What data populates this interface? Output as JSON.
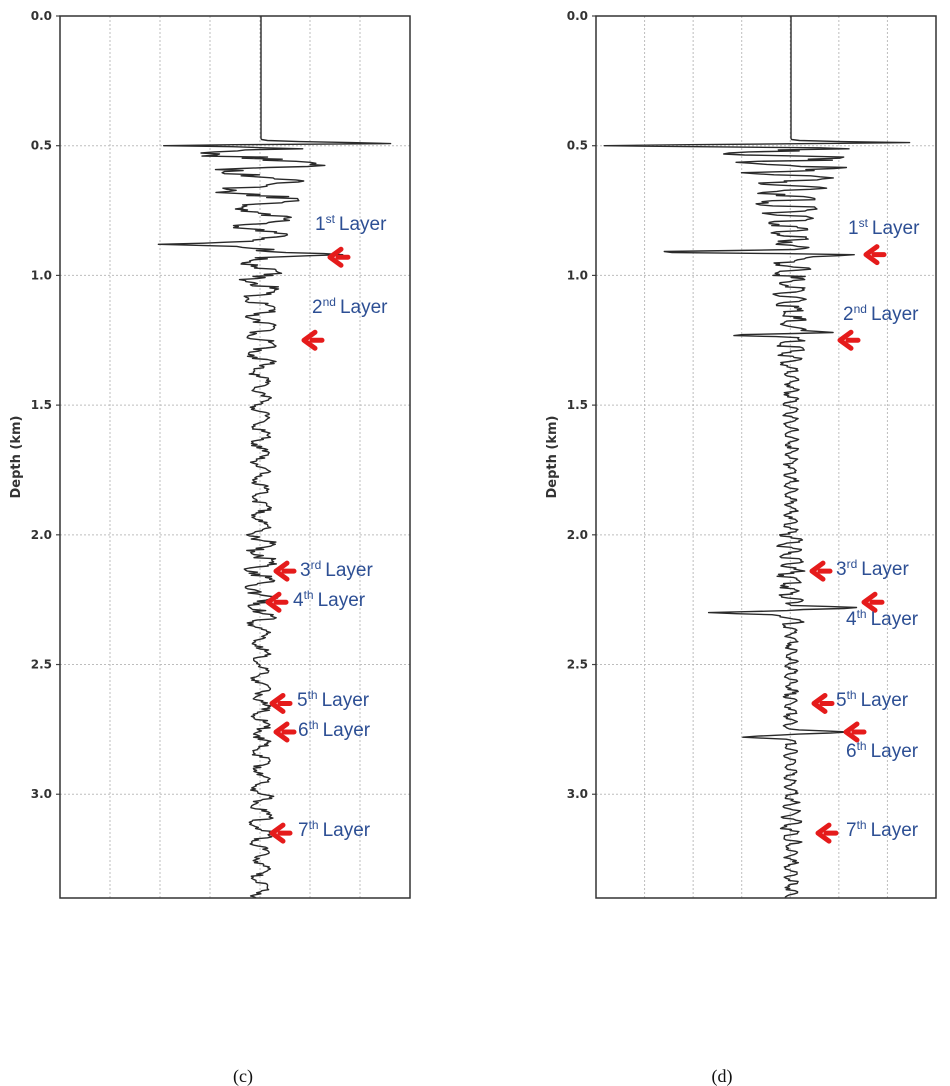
{
  "colors": {
    "trace": "#2a2a2a",
    "arrow": "#e51b1b",
    "label": "#2d4f94",
    "grid": "#bdbdbd"
  },
  "chart_data": [
    {
      "type": "line",
      "caption": "(c)",
      "ylabel": "Depth (km)",
      "ylim": [
        0.0,
        3.4
      ],
      "y_inverted": true,
      "yticks": [
        "0.0",
        "0.5",
        "1.0",
        "1.5",
        "2.0",
        "2.5",
        "3.0"
      ],
      "grid": true,
      "reflector_spikes": [
        {
          "depth": 0.5,
          "amp": -1.0
        },
        {
          "depth": 0.49,
          "amp": 0.6
        },
        {
          "depth": 0.88,
          "amp": -0.45
        },
        {
          "depth": 0.92,
          "amp": 0.38
        }
      ],
      "layers": [
        {
          "num": "1",
          "sup": "st",
          "word": "Layer",
          "arrow_depth": 0.93
        },
        {
          "num": "2",
          "sup": "nd",
          "word": "Layer",
          "arrow_depth": 1.25
        },
        {
          "num": "3",
          "sup": "rd",
          "word": "Layer",
          "arrow_depth": 2.14
        },
        {
          "num": "4",
          "sup": "th",
          "word": "Layer",
          "arrow_depth": 2.26
        },
        {
          "num": "5",
          "sup": "th",
          "word": "Layer",
          "arrow_depth": 2.65
        },
        {
          "num": "6",
          "sup": "th",
          "word": "Layer",
          "arrow_depth": 2.76
        },
        {
          "num": "7",
          "sup": "th",
          "word": "Layer",
          "arrow_depth": 3.15
        }
      ]
    },
    {
      "type": "line",
      "caption": "(d)",
      "ylabel": "Depth (km)",
      "ylim": [
        0.0,
        3.4
      ],
      "y_inverted": true,
      "yticks": [
        "0.0",
        "0.5",
        "1.0",
        "1.5",
        "2.0",
        "2.5",
        "3.0"
      ],
      "grid": true,
      "reflector_spikes": [
        {
          "depth": 0.5,
          "amp": -1.0
        },
        {
          "depth": 0.49,
          "amp": 0.8
        },
        {
          "depth": 0.91,
          "amp": -0.85
        },
        {
          "depth": 0.92,
          "amp": 0.5
        },
        {
          "depth": 1.23,
          "amp": -0.3
        },
        {
          "depth": 1.22,
          "amp": 0.3
        },
        {
          "depth": 2.3,
          "amp": -0.5
        },
        {
          "depth": 2.28,
          "amp": 0.45
        },
        {
          "depth": 2.78,
          "amp": -0.25
        },
        {
          "depth": 2.76,
          "amp": 0.3
        }
      ],
      "layers": [
        {
          "num": "1",
          "sup": "st",
          "word": "Layer",
          "arrow_depth": 0.92
        },
        {
          "num": "2",
          "sup": "nd",
          "word": "Layer",
          "arrow_depth": 1.25
        },
        {
          "num": "3",
          "sup": "rd",
          "word": "Layer",
          "arrow_depth": 2.14
        },
        {
          "num": "4",
          "sup": "th",
          "word": "Layer",
          "arrow_depth": 2.26
        },
        {
          "num": "5",
          "sup": "th",
          "word": "Layer",
          "arrow_depth": 2.65
        },
        {
          "num": "6",
          "sup": "th",
          "word": "Layer",
          "arrow_depth": 2.76
        },
        {
          "num": "7",
          "sup": "th",
          "word": "Layer",
          "arrow_depth": 3.15
        }
      ]
    }
  ]
}
